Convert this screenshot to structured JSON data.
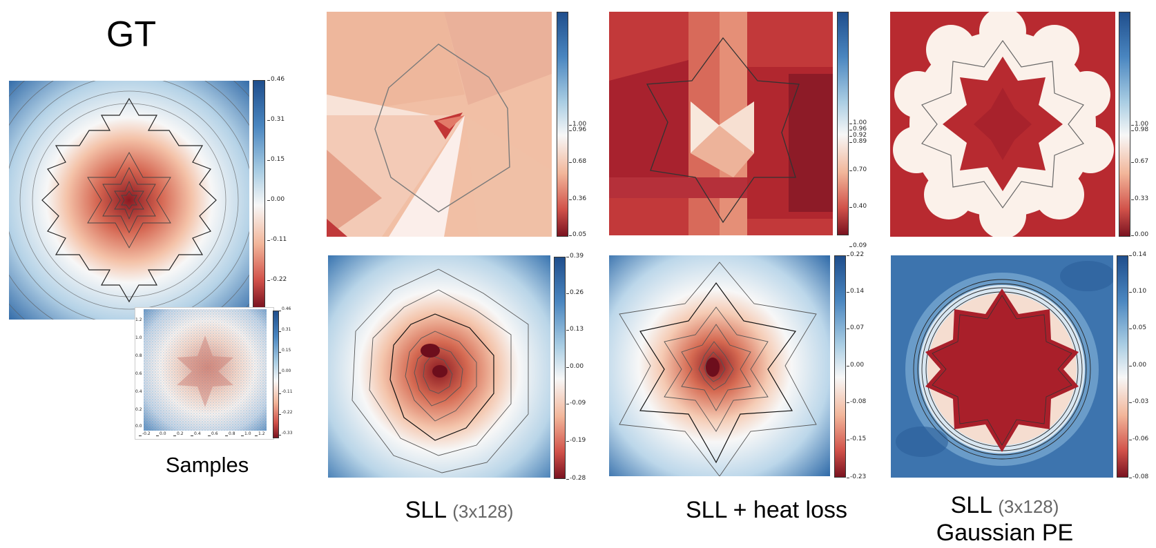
{
  "labels": {
    "gt": "GT",
    "samples": "Samples",
    "col1": "SLL",
    "col1_dim": "(3x128)",
    "col2": "SLL + heat loss",
    "col3": "SLL",
    "col3_dim": "(3x128)",
    "col3_line2": "Gaussian PE"
  },
  "colors": {
    "neg": "#b2182b",
    "zero": "#f7f7f7",
    "pos": "#2166ac"
  },
  "chart_data": [
    {
      "type": "heatmap",
      "panel": "gt",
      "colorbar": [
        0.46,
        0.31,
        0.15,
        0.0,
        -0.11,
        -0.22
      ],
      "cmap": "RdBu"
    },
    {
      "type": "scatter",
      "panel": "samples",
      "colorbar": [
        0.46,
        0.31,
        0.15,
        0.0,
        -0.11,
        -0.22,
        -0.33
      ],
      "x_ticks": [
        "-0.2",
        "0.0",
        "0.2",
        "0.4",
        "0.6",
        "0.8",
        "1.0",
        "1.2"
      ],
      "y_ticks": [
        "1.2",
        "1.0",
        "0.8",
        "0.6",
        "0.4",
        "0.2",
        "0.0"
      ]
    },
    {
      "type": "heatmap",
      "panel": "sll-top",
      "colorbar": [
        1.0,
        0.96,
        0.68,
        0.36,
        0.05
      ]
    },
    {
      "type": "heatmap",
      "panel": "heat-top",
      "colorbar": [
        1.0,
        0.96,
        0.92,
        0.89,
        0.7,
        0.4,
        0.09
      ]
    },
    {
      "type": "heatmap",
      "panel": "gauss-top",
      "colorbar": [
        1.0,
        0.98,
        0.67,
        0.33,
        0.0
      ]
    },
    {
      "type": "heatmap",
      "panel": "sll-bottom",
      "colorbar": [
        0.39,
        0.26,
        0.13,
        0.0,
        -0.09,
        -0.19,
        -0.28
      ]
    },
    {
      "type": "heatmap",
      "panel": "heat-bottom",
      "colorbar": [
        0.22,
        0.14,
        0.07,
        0.0,
        -0.08,
        -0.15,
        -0.23
      ]
    },
    {
      "type": "heatmap",
      "panel": "gauss-bottom",
      "colorbar": [
        0.14,
        0.1,
        0.05,
        0.0,
        -0.03,
        -0.06,
        -0.08
      ]
    }
  ]
}
